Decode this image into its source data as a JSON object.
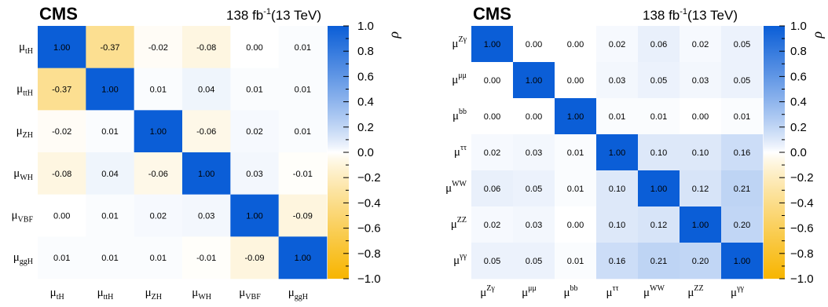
{
  "chart_data": [
    {
      "type": "heatmap",
      "experiment": "CMS",
      "luminosity": "138 fb",
      "luminosity_exp": "-1",
      "energy": "(13 TeV)",
      "zlabel": "ρ",
      "zlim": [
        -1.0,
        1.0
      ],
      "colorbar_ticks": [
        "1.0",
        "0.8",
        "0.6",
        "0.4",
        "0.2",
        "0.0",
        "−0.2",
        "−0.4",
        "−0.6",
        "−0.8",
        "−1.0"
      ],
      "labels": [
        {
          "base": "μ",
          "mode": "sub",
          "script": "tH"
        },
        {
          "base": "μ",
          "mode": "sub",
          "script": "ttH"
        },
        {
          "base": "μ",
          "mode": "sub",
          "script": "ZH"
        },
        {
          "base": "μ",
          "mode": "sub",
          "script": "WH"
        },
        {
          "base": "μ",
          "mode": "sub",
          "script": "VBF"
        },
        {
          "base": "μ",
          "mode": "sub",
          "script": "ggH"
        }
      ],
      "matrix": [
        [
          1.0,
          -0.37,
          -0.02,
          -0.08,
          0.0,
          0.01
        ],
        [
          -0.37,
          1.0,
          0.01,
          0.04,
          0.01,
          0.01
        ],
        [
          -0.02,
          0.01,
          1.0,
          -0.06,
          0.02,
          0.01
        ],
        [
          -0.08,
          0.04,
          -0.06,
          1.0,
          0.03,
          -0.01
        ],
        [
          0.0,
          0.01,
          0.02,
          0.03,
          1.0,
          -0.09
        ],
        [
          0.01,
          0.01,
          0.01,
          -0.01,
          -0.09,
          1.0
        ]
      ],
      "value_format": "2 decimals"
    },
    {
      "type": "heatmap",
      "experiment": "CMS",
      "luminosity": "138 fb",
      "luminosity_exp": "-1",
      "energy": "(13 TeV)",
      "zlabel": "ρ",
      "zlim": [
        -1.0,
        1.0
      ],
      "colorbar_ticks": [
        "1.0",
        "0.8",
        "0.6",
        "0.4",
        "0.2",
        "0.0",
        "−0.2",
        "−0.4",
        "−0.6",
        "−0.8",
        "−1.0"
      ],
      "labels": [
        {
          "base": "μ",
          "mode": "sup",
          "script": "Zγ"
        },
        {
          "base": "μ",
          "mode": "sup",
          "script": "μμ"
        },
        {
          "base": "μ",
          "mode": "sup",
          "script": "bb"
        },
        {
          "base": "μ",
          "mode": "sup",
          "script": "ττ"
        },
        {
          "base": "μ",
          "mode": "sup",
          "script": "WW"
        },
        {
          "base": "μ",
          "mode": "sup",
          "script": "ZZ"
        },
        {
          "base": "μ",
          "mode": "sup",
          "script": "γγ"
        }
      ],
      "matrix": [
        [
          1.0,
          0.0,
          0.0,
          0.02,
          0.06,
          0.02,
          0.05
        ],
        [
          0.0,
          1.0,
          0.0,
          0.03,
          0.05,
          0.03,
          0.05
        ],
        [
          0.0,
          0.0,
          1.0,
          0.01,
          0.01,
          0.0,
          0.01
        ],
        [
          0.02,
          0.03,
          0.01,
          1.0,
          0.1,
          0.1,
          0.16
        ],
        [
          0.06,
          0.05,
          0.01,
          0.1,
          1.0,
          0.12,
          0.21
        ],
        [
          0.02,
          0.03,
          0.0,
          0.1,
          0.12,
          1.0,
          0.2
        ],
        [
          0.05,
          0.05,
          0.01,
          0.16,
          0.21,
          0.2,
          1.0
        ]
      ],
      "value_format": "2 decimals"
    }
  ],
  "colors": {
    "positive": "#0b5ed7",
    "zero": "#ffffff",
    "negative": "#f7b500"
  }
}
